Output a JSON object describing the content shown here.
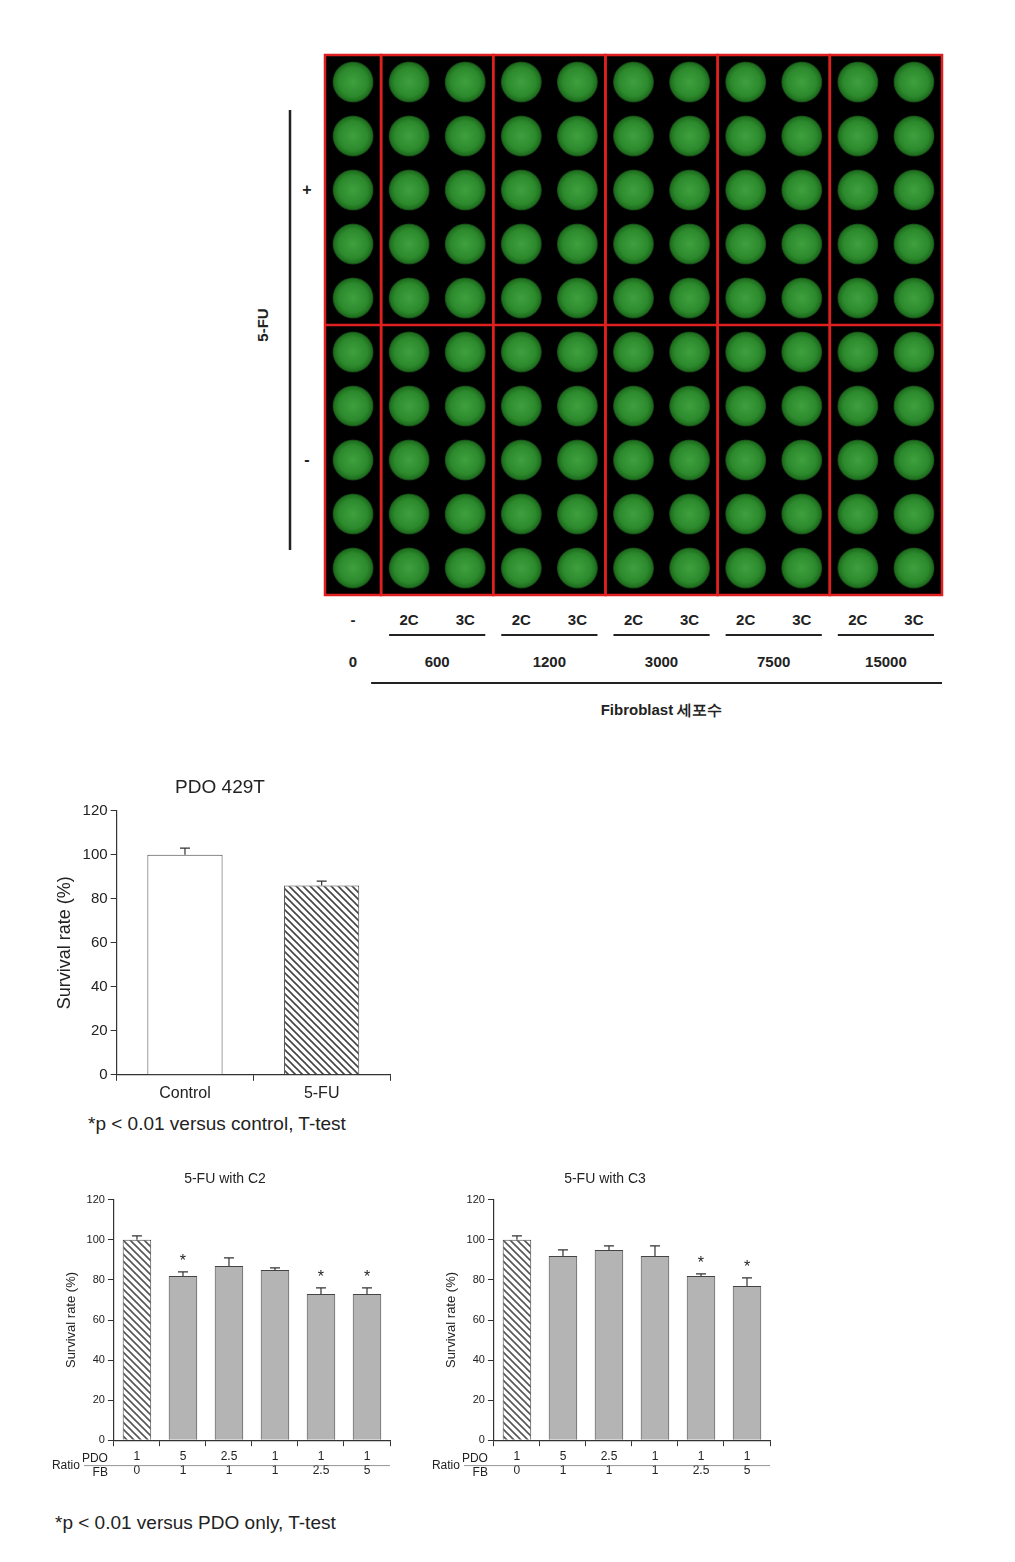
{
  "image_panel": {
    "y_label": "5-FU",
    "row_groups": [
      "+",
      "-"
    ],
    "rows_per_group": 5,
    "x_title": "Fibroblast 세포수",
    "columns": [
      {
        "count": 0,
        "labels": [
          "-"
        ]
      },
      {
        "count": 600,
        "labels": [
          "2C",
          "3C"
        ]
      },
      {
        "count": 1200,
        "labels": [
          "2C",
          "3C"
        ]
      },
      {
        "count": 3000,
        "labels": [
          "2C",
          "3C"
        ]
      },
      {
        "count": 7500,
        "labels": [
          "2C",
          "3C"
        ]
      },
      {
        "count": 15000,
        "labels": [
          "2C",
          "3C"
        ]
      }
    ]
  },
  "chart_data": [
    {
      "type": "bar",
      "title": "PDO 429T",
      "y_label": "Survival rate (%)",
      "categories": [
        "Control",
        "5-FU"
      ],
      "values": [
        100,
        86
      ],
      "errors": [
        3,
        2
      ],
      "colors": [
        "#ffffff",
        "#444444"
      ],
      "ylim": [
        0,
        120
      ],
      "yticks": [
        0,
        20,
        40,
        60,
        80,
        100,
        120
      ],
      "grid": false,
      "footnote": "*p < 0.01 versus control, T-test"
    },
    {
      "type": "bar",
      "title": "5-FU with C2",
      "y_label": "Survival rate (%)",
      "category_title": "Ratio",
      "category_rows": [
        "PDO",
        "FB"
      ],
      "categories": [
        [
          "1",
          "0"
        ],
        [
          "5",
          "1"
        ],
        [
          "2.5",
          "1"
        ],
        [
          "1",
          "1"
        ],
        [
          "1",
          "2.5"
        ],
        [
          "1",
          "5"
        ]
      ],
      "values": [
        100,
        82,
        87,
        85,
        73,
        73
      ],
      "errors": [
        2,
        2,
        4,
        1,
        3,
        3
      ],
      "annotations": [
        null,
        "*",
        null,
        null,
        "*",
        "*"
      ],
      "colors": [
        "#555555",
        "#b4b4b4",
        "#b4b4b4",
        "#b4b4b4",
        "#b4b4b4",
        "#b4b4b4"
      ],
      "ylim": [
        0,
        120
      ],
      "yticks": [
        0,
        20,
        40,
        60,
        80,
        100,
        120
      ],
      "grid": false,
      "footnote": "*p < 0.01 versus PDO only, T-test"
    },
    {
      "type": "bar",
      "title": "5-FU with C3",
      "y_label": "Survival rate (%)",
      "category_title": "Ratio",
      "category_rows": [
        "PDO",
        "FB"
      ],
      "categories": [
        [
          "1",
          "0"
        ],
        [
          "5",
          "1"
        ],
        [
          "2.5",
          "1"
        ],
        [
          "1",
          "1"
        ],
        [
          "1",
          "2.5"
        ],
        [
          "1",
          "5"
        ]
      ],
      "values": [
        100,
        92,
        95,
        92,
        82,
        77
      ],
      "errors": [
        2,
        3,
        2,
        5,
        1,
        4
      ],
      "annotations": [
        null,
        null,
        null,
        null,
        "*",
        "*"
      ],
      "colors": [
        "#555555",
        "#b4b4b4",
        "#b4b4b4",
        "#b4b4b4",
        "#b4b4b4",
        "#b4b4b4"
      ],
      "ylim": [
        0,
        120
      ],
      "yticks": [
        0,
        20,
        40,
        60,
        80,
        100,
        120
      ],
      "grid": false
    }
  ]
}
